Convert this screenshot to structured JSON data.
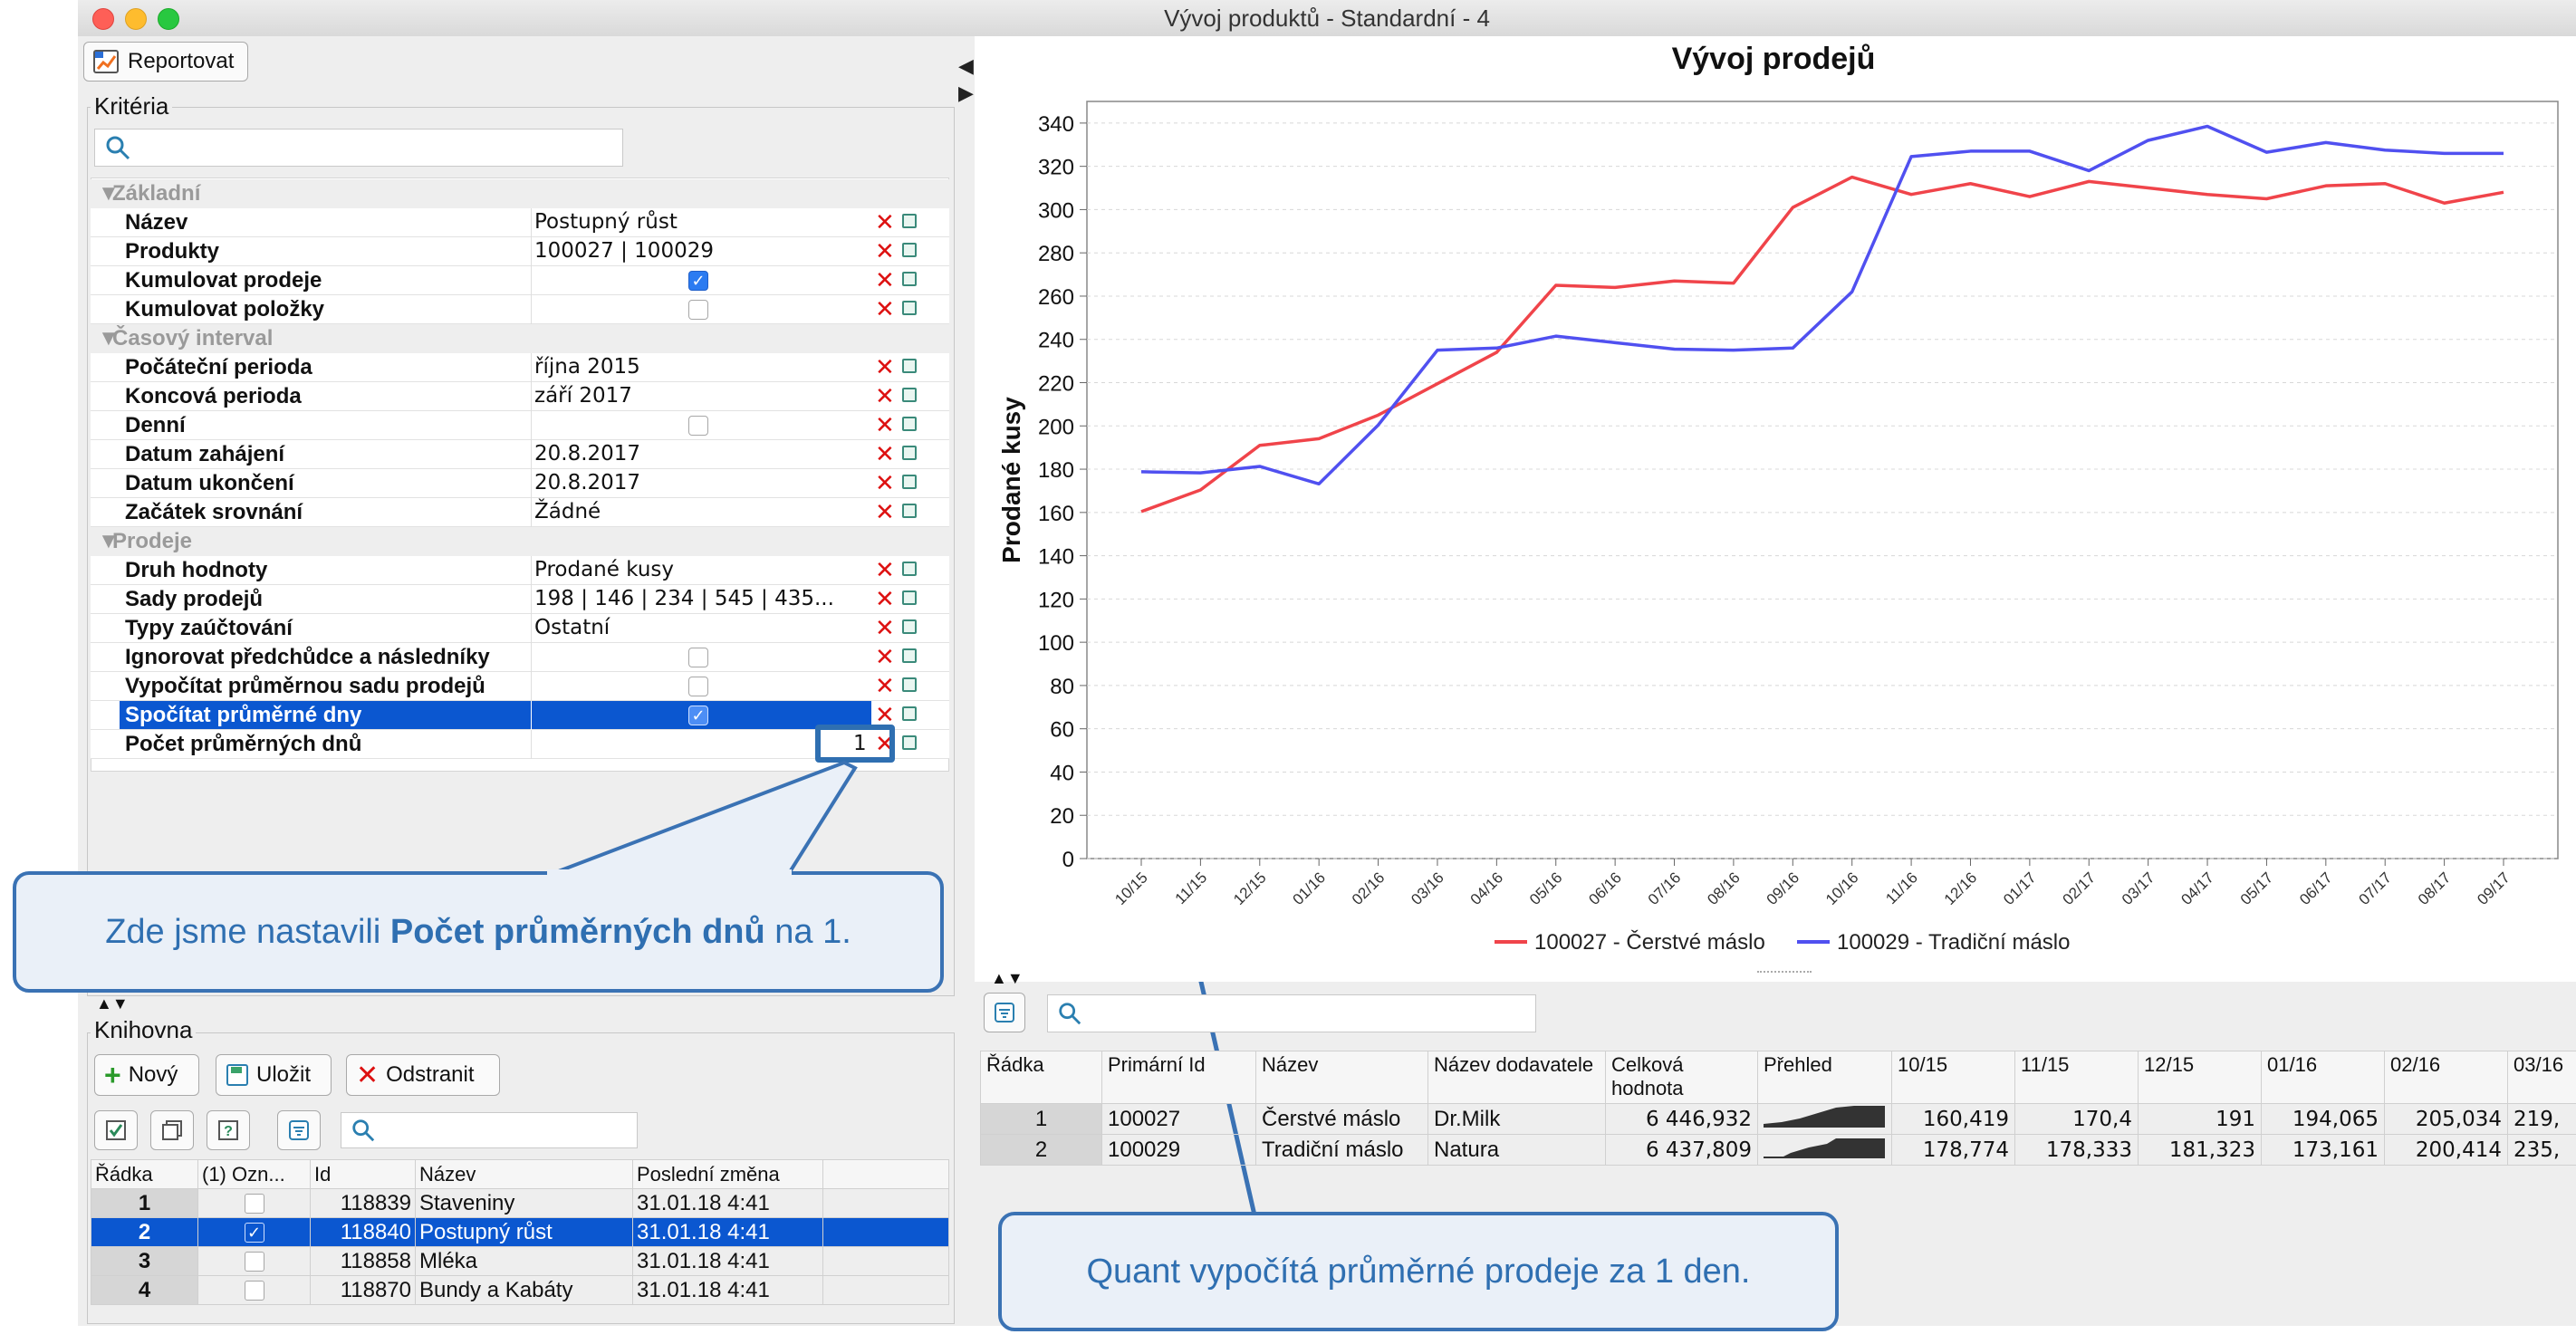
{
  "window": {
    "title": "Vývoj produktů - Standardní - 4"
  },
  "toolbar": {
    "report_button": "Reportovat"
  },
  "criteria": {
    "title": "Kritéria",
    "categories": {
      "basic": "Základní",
      "period": "Časový interval",
      "sales": "Prodeje"
    },
    "rows": {
      "nazev": {
        "label": "Název",
        "value": "Postupný růst"
      },
      "produkty": {
        "label": "Produkty",
        "value": "100027 | 100029"
      },
      "kumulovat_prodeje": {
        "label": "Kumulovat prodeje"
      },
      "kumulovat_polozky": {
        "label": "Kumulovat položky"
      },
      "pocatecni": {
        "label": "Počáteční perioda",
        "value": "října 2015"
      },
      "koncova": {
        "label": "Koncová perioda",
        "value": "září 2017"
      },
      "denni": {
        "label": "Denní"
      },
      "datum_zahajeni": {
        "label": "Datum zahájení",
        "value": "20.8.2017"
      },
      "datum_ukonceni": {
        "label": "Datum ukončení",
        "value": "20.8.2017"
      },
      "zacatek_srovnani": {
        "label": "Začátek srovnání",
        "value": "Žádné"
      },
      "druh_hodnoty": {
        "label": "Druh hodnoty",
        "value": "Prodané kusy"
      },
      "sady_prodeju": {
        "label": "Sady prodejů",
        "value": "198 | 146 | 234 | 545 | 435..."
      },
      "typy_zauctovani": {
        "label": "Typy zaúčtování",
        "value": "Ostatní"
      },
      "ignorovat": {
        "label": "Ignorovat předchůdce a následníky"
      },
      "vypocitat": {
        "label": "Vypočítat průměrnou sadu prodejů"
      },
      "spocitat": {
        "label": "Spočítat průměrné dny"
      },
      "pocet": {
        "label": "Počet průměrných dnů",
        "value": "1"
      }
    }
  },
  "callout_left": {
    "pre": "Zde jsme nastavili ",
    "bold": "Počet průměrných dnů",
    "post": " na 1."
  },
  "callout_right": {
    "text": "Quant vypočítá průměrné prodeje za 1 den."
  },
  "library": {
    "title": "Knihovna",
    "buttons": {
      "new": "Nový",
      "save": "Uložit",
      "delete": "Odstranit"
    },
    "columns": [
      "Řádka",
      "(1) Ozn...",
      "Id",
      "Název",
      "Poslední změna"
    ],
    "rows": [
      {
        "n": "1",
        "checked": false,
        "id": "118839",
        "name": "Staveniny",
        "changed": "31.01.18 4:41"
      },
      {
        "n": "2",
        "checked": true,
        "id": "118840",
        "name": "Postupný růst",
        "changed": "31.01.18 4:41"
      },
      {
        "n": "3",
        "checked": false,
        "id": "118858",
        "name": "Mléka",
        "changed": "31.01.18 4:41"
      },
      {
        "n": "4",
        "checked": false,
        "id": "118870",
        "name": "Bundy a Kabáty",
        "changed": "31.01.18 4:41"
      }
    ]
  },
  "data_table": {
    "columns": [
      "Řádka",
      "Primární Id",
      "Název",
      "Název dodavatele",
      "Celková hodnota",
      "Přehled",
      "10/15",
      "11/15",
      "12/15",
      "01/16",
      "02/16",
      "03/16"
    ],
    "rows": [
      {
        "n": "1",
        "id": "100027",
        "name": "Čerstvé máslo",
        "supplier": "Dr.Milk",
        "total": "6 446,932",
        "v1": "160,419",
        "v2": "170,4",
        "v3": "191",
        "v4": "194,065",
        "v5": "205,034",
        "v6": "219,"
      },
      {
        "n": "2",
        "id": "100029",
        "name": "Tradiční máslo",
        "supplier": "Natura",
        "total": "6 437,809",
        "v1": "178,774",
        "v2": "178,333",
        "v3": "181,323",
        "v4": "173,161",
        "v5": "200,414",
        "v6": "235,"
      }
    ]
  },
  "colors": {
    "series1": "#f0444a",
    "series2": "#5050f0",
    "selection": "#0b57d0",
    "callout_border": "#3a72b4"
  },
  "chart_data": {
    "type": "line",
    "title": "Vývoj prodejů",
    "ylabel": "Prodané kusy",
    "xlabel": "",
    "ylim": [
      0,
      350
    ],
    "yticks": [
      0,
      20,
      40,
      60,
      80,
      100,
      120,
      140,
      160,
      180,
      200,
      220,
      240,
      260,
      280,
      300,
      320,
      340
    ],
    "grid": true,
    "legend": "bottom",
    "categories": [
      "10/15",
      "11/15",
      "12/15",
      "01/16",
      "02/16",
      "03/16",
      "04/16",
      "05/16",
      "06/16",
      "07/16",
      "08/16",
      "09/16",
      "10/16",
      "11/16",
      "12/16",
      "01/17",
      "02/17",
      "03/17",
      "04/17",
      "05/17",
      "06/17",
      "07/17",
      "08/17",
      "09/17"
    ],
    "series": [
      {
        "name": "100027 - Čerstvé máslo",
        "color": "#f0444a",
        "values": [
          160.4,
          170.4,
          191,
          194.1,
          205,
          219.5,
          234,
          265,
          264,
          267,
          266,
          301,
          315,
          307,
          312,
          306,
          313,
          310,
          307,
          305,
          311,
          312,
          303,
          308
        ]
      },
      {
        "name": "100029 - Tradiční máslo",
        "color": "#5050f0",
        "values": [
          178.8,
          178.3,
          181.3,
          173.2,
          200.4,
          235,
          236,
          241.5,
          238.5,
          235.5,
          235,
          236,
          262,
          324.5,
          327,
          327,
          318,
          332,
          338.5,
          326.5,
          331,
          327.5,
          326,
          326
        ]
      }
    ]
  }
}
